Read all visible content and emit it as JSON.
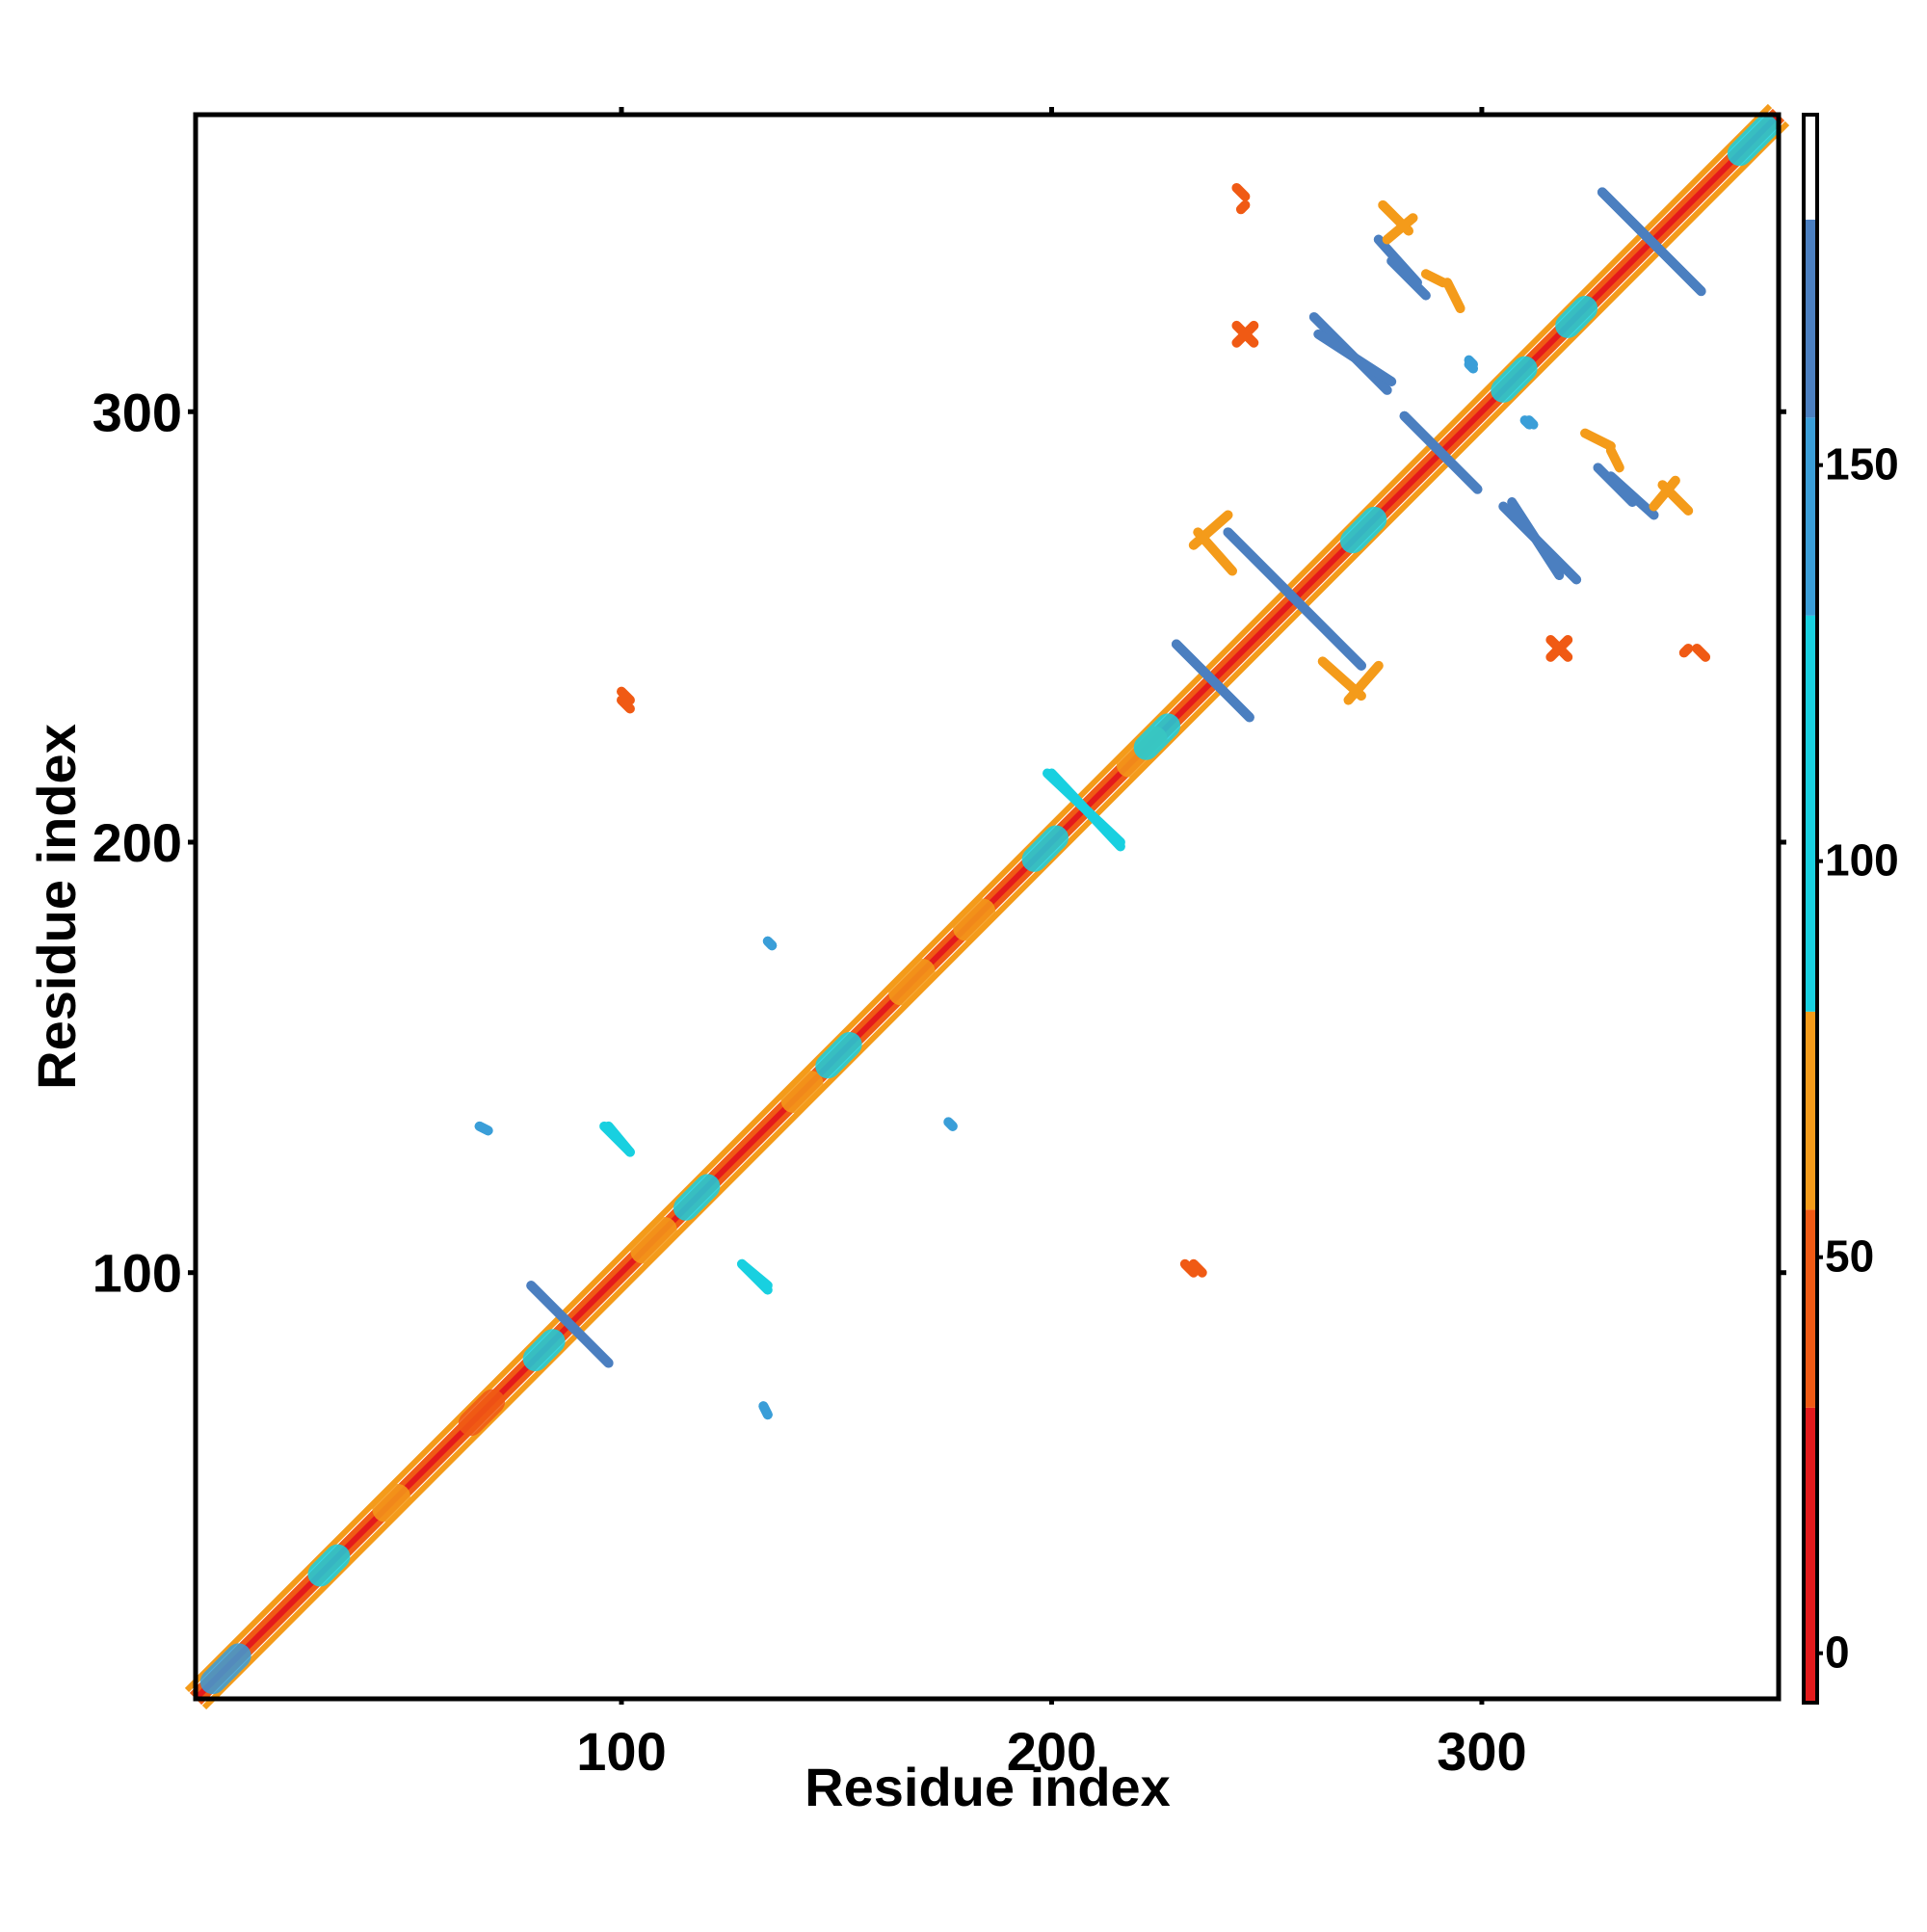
{
  "chart_data": {
    "type": "heatmap",
    "title": "",
    "xlabel": "Residue index",
    "ylabel": "Residue index",
    "xlim": [
      1,
      369
    ],
    "ylim": [
      1,
      369
    ],
    "x_ticks": [
      100,
      200,
      300
    ],
    "y_ticks": [
      100,
      200,
      300
    ],
    "grid": false,
    "legend": "colorbar-right",
    "colorbar": {
      "ticks": [
        0,
        50,
        100,
        150
      ],
      "range": [
        -6,
        194
      ],
      "bins": [
        {
          "from": -6,
          "to": 31,
          "color": "#e31a1c"
        },
        {
          "from": 31,
          "to": 56,
          "color": "#f05a14"
        },
        {
          "from": 56,
          "to": 81,
          "color": "#f49b1a"
        },
        {
          "from": 81,
          "to": 131,
          "color": "#18d0e0"
        },
        {
          "from": 131,
          "to": 156,
          "color": "#3a9ed8"
        },
        {
          "from": 156,
          "to": 181,
          "color": "#4b7fc0"
        },
        {
          "from": 181,
          "to": 194,
          "color": "#ffffff"
        }
      ]
    },
    "colors": {
      "red": "#e31a1c",
      "orange_red": "#f05a14",
      "orange": "#f49b1a",
      "cyan": "#18d0e0",
      "sky": "#3a9ed8",
      "steel": "#4b7fc0"
    },
    "diagonal": {
      "from": 1,
      "to": 369
    },
    "diagonal_decor": [
      {
        "at": 5,
        "len": 6,
        "value": 140
      },
      {
        "at": 30,
        "len": 4,
        "value": 100
      },
      {
        "at": 45,
        "len": 3,
        "value": 70
      },
      {
        "at": 65,
        "len": 5,
        "value": 45
      },
      {
        "at": 80,
        "len": 4,
        "value": 100
      },
      {
        "at": 105,
        "len": 5,
        "value": 60
      },
      {
        "at": 115,
        "len": 5,
        "value": 100
      },
      {
        "at": 140,
        "len": 4,
        "value": 60
      },
      {
        "at": 148,
        "len": 5,
        "value": 100
      },
      {
        "at": 165,
        "len": 5,
        "value": 70
      },
      {
        "at": 180,
        "len": 4,
        "value": 60
      },
      {
        "at": 196,
        "len": 5,
        "value": 100
      },
      {
        "at": 218,
        "len": 6,
        "value": 60
      },
      {
        "at": 222,
        "len": 5,
        "value": 100
      },
      {
        "at": 270,
        "len": 5,
        "value": 100
      },
      {
        "at": 305,
        "len": 5,
        "value": 100
      },
      {
        "at": 320,
        "len": 4,
        "value": 100
      },
      {
        "at": 360,
        "len": 6,
        "value": 100
      }
    ],
    "contacts": [
      {
        "x1": 79,
        "y1": 97,
        "x2": 97,
        "y2": 79,
        "value": 160
      },
      {
        "x1": 97,
        "y1": 134,
        "x2": 102,
        "y2": 128,
        "value": 115
      },
      {
        "x1": 128,
        "y1": 102,
        "x2": 134,
        "y2": 96,
        "value": 115
      },
      {
        "x1": 200,
        "y1": 216,
        "x2": 216,
        "y2": 199,
        "value": 100
      },
      {
        "x1": 229,
        "y1": 246,
        "x2": 246,
        "y2": 229,
        "value": 160
      },
      {
        "x1": 241,
        "y1": 272,
        "x2": 272,
        "y2": 241,
        "value": 160
      },
      {
        "x1": 261,
        "y1": 322,
        "x2": 278,
        "y2": 305,
        "value": 160
      },
      {
        "x1": 282,
        "y1": 299,
        "x2": 299,
        "y2": 282,
        "value": 160
      },
      {
        "x1": 276,
        "y1": 340,
        "x2": 285,
        "y2": 330,
        "value": 160
      },
      {
        "x1": 307,
        "y1": 279,
        "x2": 318,
        "y2": 262,
        "value": 160
      },
      {
        "x1": 327,
        "y1": 287,
        "x2": 335,
        "y2": 279,
        "value": 160
      },
      {
        "x1": 328,
        "y1": 351,
        "x2": 351,
        "y2": 328,
        "value": 160
      },
      {
        "x1": 100,
        "y1": 233,
        "x2": 102,
        "y2": 231,
        "value": 40
      },
      {
        "x1": 233,
        "y1": 102,
        "x2": 235,
        "y2": 100,
        "value": 40
      },
      {
        "x1": 67,
        "y1": 134,
        "x2": 69,
        "y2": 133,
        "value": 150
      },
      {
        "x1": 133,
        "y1": 69,
        "x2": 134,
        "y2": 67,
        "value": 150
      },
      {
        "x1": 134,
        "y1": 177,
        "x2": 135,
        "y2": 176,
        "value": 150
      },
      {
        "x1": 176,
        "y1": 135,
        "x2": 177,
        "y2": 134,
        "value": 150
      },
      {
        "x1": 277,
        "y1": 348,
        "x2": 283,
        "y2": 342,
        "value": 60
      },
      {
        "x1": 287,
        "y1": 332,
        "x2": 291,
        "y2": 330,
        "value": 60
      },
      {
        "x1": 243,
        "y1": 320,
        "x2": 247,
        "y2": 316,
        "value": 50
      },
      {
        "x1": 243,
        "y1": 352,
        "x2": 245,
        "y2": 350,
        "value": 45
      },
      {
        "x1": 233,
        "y1": 269,
        "x2": 241,
        "y2": 276,
        "value": 60
      },
      {
        "x1": 263,
        "y1": 242,
        "x2": 272,
        "y2": 234,
        "value": 60
      },
      {
        "x1": 316,
        "y1": 243,
        "x2": 320,
        "y2": 247,
        "value": 50
      },
      {
        "x1": 347,
        "y1": 244,
        "x2": 348,
        "y2": 245,
        "value": 45
      },
      {
        "x1": 324,
        "y1": 295,
        "x2": 330,
        "y2": 292,
        "value": 70
      },
      {
        "x1": 340,
        "y1": 278,
        "x2": 345,
        "y2": 284,
        "value": 70
      },
      {
        "x1": 311,
        "y1": 298,
        "x2": 312,
        "y2": 297,
        "value": 150
      },
      {
        "x1": 297,
        "y1": 311,
        "x2": 298,
        "y2": 310,
        "value": 150
      }
    ]
  }
}
